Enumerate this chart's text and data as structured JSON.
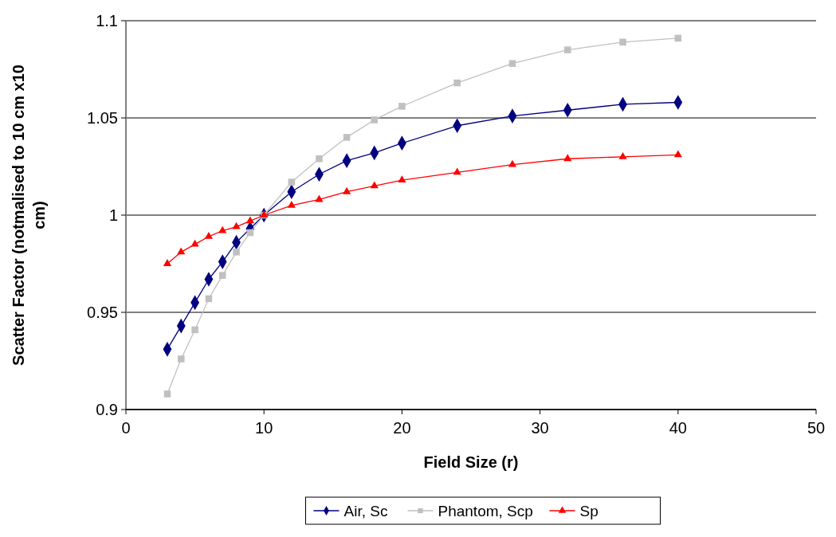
{
  "chart_data": {
    "type": "line",
    "xlabel": "Field Size (r)",
    "ylabel": "Scatter Factor (notmalised to 10 cm x10 cm)",
    "x": [
      3,
      4,
      5,
      6,
      7,
      8,
      9,
      10,
      12,
      14,
      16,
      18,
      20,
      24,
      28,
      32,
      36,
      40
    ],
    "xlim": [
      0,
      50
    ],
    "xticks": [
      0,
      10,
      20,
      30,
      40,
      50
    ],
    "ylim": [
      0.9,
      1.1
    ],
    "yticks": [
      0.9,
      0.95,
      1,
      1.05,
      1.1
    ],
    "grid": "y",
    "legend": "bottom",
    "series": [
      {
        "name": "Air, Sc",
        "color": "#000080",
        "marker": "diamond",
        "values": [
          0.931,
          0.943,
          0.955,
          0.967,
          0.976,
          0.986,
          0.993,
          1.0,
          1.012,
          1.021,
          1.028,
          1.032,
          1.037,
          1.046,
          1.051,
          1.054,
          1.057,
          1.058
        ]
      },
      {
        "name": "Phantom, Scp",
        "color": "#c0c0c0",
        "marker": "square",
        "values": [
          0.908,
          0.926,
          0.941,
          0.957,
          0.969,
          0.981,
          0.991,
          1.0,
          1.017,
          1.029,
          1.04,
          1.049,
          1.056,
          1.068,
          1.078,
          1.085,
          1.089,
          1.091
        ]
      },
      {
        "name": "Sp",
        "color": "#ff0000",
        "marker": "triangle",
        "values": [
          0.975,
          0.981,
          0.985,
          0.989,
          0.992,
          0.994,
          0.997,
          1.0,
          1.005,
          1.008,
          1.012,
          1.015,
          1.018,
          1.022,
          1.026,
          1.029,
          1.03,
          1.031
        ]
      }
    ]
  }
}
